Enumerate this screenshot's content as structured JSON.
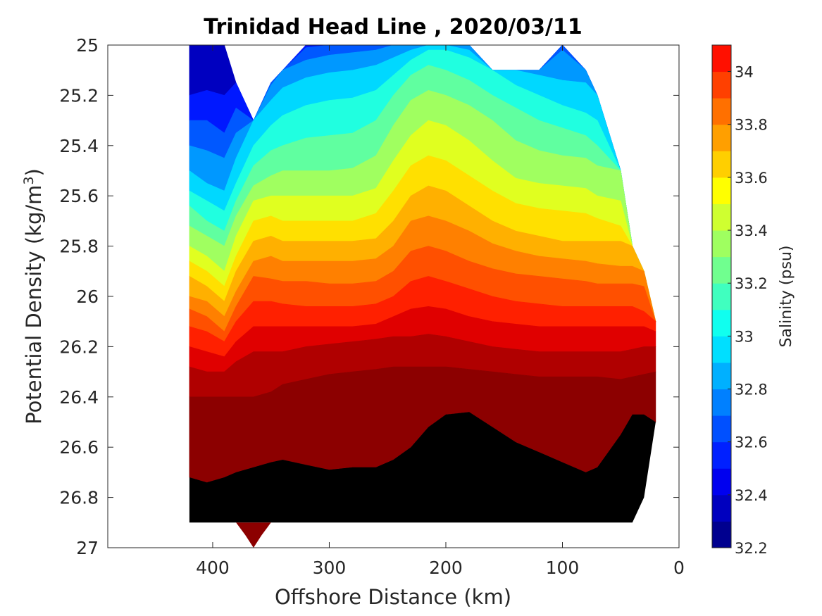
{
  "chart_data": {
    "type": "contour",
    "title": "Trinidad Head Line , 2020/03/11",
    "xlabel": "Offshore Distance (km)",
    "ylabel_main": "Potential Density (kg/m",
    "ylabel_sup": "3",
    "ylabel_end": ")",
    "colorbar_label": "Salinity (psu)",
    "xlim": [
      490,
      0
    ],
    "x_reversed": true,
    "ylim": [
      25,
      27
    ],
    "y_reversed": true,
    "x_ticks": [
      400,
      300,
      200,
      100,
      0
    ],
    "x_tick_labels": [
      "400",
      "300",
      "200",
      "100",
      "0"
    ],
    "y_ticks": [
      25,
      25.2,
      25.4,
      25.6,
      25.8,
      26,
      26.2,
      26.4,
      26.6,
      26.8,
      27
    ],
    "y_tick_labels": [
      "25",
      "25.2",
      "25.4",
      "25.6",
      "25.8",
      "26",
      "26.2",
      "26.4",
      "26.6",
      "26.8",
      "27"
    ],
    "colorbar_range": [
      32.2,
      34.1
    ],
    "colorbar_ticks": [
      32.2,
      32.4,
      32.6,
      32.8,
      33,
      33.2,
      33.4,
      33.6,
      33.8,
      34
    ],
    "colorbar_tick_labels": [
      "32.2",
      "32.4",
      "32.6",
      "32.8",
      "33",
      "33.2",
      "33.4",
      "33.6",
      "33.8",
      "34"
    ],
    "levels": [
      32.2,
      32.3,
      32.4,
      32.5,
      32.6,
      32.7,
      32.8,
      32.9,
      33.0,
      33.1,
      33.2,
      33.3,
      33.4,
      33.5,
      33.6,
      33.7,
      33.8,
      33.9,
      34.0,
      34.1
    ],
    "level_colors": [
      "#00008f",
      "#0000bf",
      "#0000ef",
      "#0020ff",
      "#0050ff",
      "#0080ff",
      "#00b0ff",
      "#00dfff",
      "#10ffef",
      "#40ffbf",
      "#70ff8f",
      "#9fff60",
      "#cfff30",
      "#ffff00",
      "#ffcf00",
      "#ff9f00",
      "#ff7000",
      "#ff4000",
      "#ff1000",
      "#df0000"
    ],
    "band_colors": [
      "#0000c0",
      "#0018ff",
      "#0058ff",
      "#0098ff",
      "#00d8ff",
      "#20ffe0",
      "#60ffa0",
      "#a0ff60",
      "#e0ff20",
      "#ffe000",
      "#ffb000",
      "#ff8000",
      "#ff5000",
      "#ff2000",
      "#e00000",
      "#b00000",
      "#8c0000"
    ],
    "station_x": [
      420,
      405,
      390,
      380,
      365,
      350,
      340,
      320,
      300,
      280,
      260,
      245,
      230,
      215,
      200,
      180,
      160,
      140,
      120,
      100,
      80,
      70,
      50,
      40,
      30,
      20
    ],
    "data_top": [
      25,
      25,
      25,
      25.15,
      25.3,
      25.15,
      25.1,
      25,
      25,
      25,
      25,
      25,
      25,
      25,
      25,
      25,
      25.1,
      25.1,
      25.1,
      25,
      25.1,
      25.2,
      25.5,
      25.8,
      25.9,
      26.1
    ],
    "data_bottom": [
      26.9,
      26.9,
      26.9,
      26.9,
      26.9,
      26.9,
      26.9,
      26.9,
      26.9,
      26.9,
      26.9,
      26.9,
      26.9,
      26.9,
      26.9,
      26.9,
      26.9,
      26.9,
      26.9,
      26.9,
      26.9,
      26.9,
      26.9,
      26.9,
      26.8,
      26.5
    ],
    "contours": [
      {
        "level": 32.4,
        "depth": [
          25.2,
          25.18,
          25.2,
          25.1,
          25.05,
          25.02,
          25.0,
          25.0,
          25.0,
          25.0,
          25.0,
          25.0,
          25.0,
          25.0,
          25.0,
          25.0,
          25.0,
          25.0,
          25.0,
          25.0,
          25.0,
          25.0,
          25.0,
          25.0,
          25.0,
          25.0
        ]
      },
      {
        "level": 32.5,
        "depth": [
          25.3,
          25.3,
          25.35,
          25.25,
          25.12,
          25.08,
          25.03,
          25.01,
          25.0,
          25.0,
          25.0,
          25.0,
          25.0,
          25.0,
          25.0,
          25.0,
          25.0,
          25.0,
          25.0,
          25.0,
          25.0,
          25.0,
          25.0,
          25.0,
          25.0,
          25.0
        ]
      },
      {
        "level": 32.6,
        "depth": [
          25.4,
          25.42,
          25.45,
          25.35,
          25.2,
          25.16,
          25.1,
          25.06,
          25.04,
          25.03,
          25.02,
          25.0,
          25.0,
          25.0,
          25.0,
          25.0,
          25.0,
          25.0,
          25.0,
          25.02,
          25.04,
          25.05,
          25.1,
          25.1,
          25.1,
          25.1
        ]
      },
      {
        "level": 32.7,
        "depth": [
          25.5,
          25.55,
          25.58,
          25.45,
          25.3,
          25.22,
          25.17,
          25.13,
          25.11,
          25.1,
          25.08,
          25.05,
          25.02,
          25.0,
          25.0,
          25.02,
          25.06,
          25.1,
          25.12,
          25.14,
          25.15,
          25.18,
          25.2,
          25.2,
          25.2,
          25.2
        ]
      },
      {
        "level": 32.8,
        "depth": [
          25.58,
          25.62,
          25.66,
          25.55,
          25.4,
          25.32,
          25.28,
          25.24,
          25.22,
          25.21,
          25.18,
          25.12,
          25.06,
          25.02,
          25.02,
          25.05,
          25.1,
          25.16,
          25.2,
          25.24,
          25.27,
          25.3,
          25.3,
          25.3,
          25.3,
          25.3
        ]
      },
      {
        "level": 32.9,
        "depth": [
          25.64,
          25.7,
          25.74,
          25.62,
          25.48,
          25.42,
          25.4,
          25.37,
          25.36,
          25.35,
          25.3,
          25.2,
          25.12,
          25.08,
          25.1,
          25.14,
          25.2,
          25.25,
          25.3,
          25.33,
          25.36,
          25.4,
          25.45,
          25.45,
          25.45,
          25.45
        ]
      },
      {
        "level": 33.0,
        "depth": [
          25.72,
          25.76,
          25.8,
          25.68,
          25.56,
          25.52,
          25.5,
          25.5,
          25.5,
          25.49,
          25.44,
          25.32,
          25.22,
          25.18,
          25.2,
          25.24,
          25.3,
          25.38,
          25.42,
          25.44,
          25.45,
          25.48,
          25.5,
          25.5,
          25.5,
          25.5
        ]
      },
      {
        "level": 33.1,
        "depth": [
          25.8,
          25.84,
          25.9,
          25.76,
          25.62,
          25.6,
          25.6,
          25.6,
          25.6,
          25.6,
          25.57,
          25.46,
          25.36,
          25.3,
          25.32,
          25.38,
          25.46,
          25.53,
          25.55,
          25.56,
          25.57,
          25.6,
          25.62,
          25.62,
          25.62,
          25.62
        ]
      },
      {
        "level": 33.2,
        "depth": [
          25.86,
          25.9,
          25.96,
          25.84,
          25.7,
          25.68,
          25.7,
          25.7,
          25.7,
          25.7,
          25.67,
          25.58,
          25.48,
          25.44,
          25.46,
          25.52,
          25.58,
          25.63,
          25.65,
          25.66,
          25.67,
          25.69,
          25.72,
          25.72,
          25.72,
          25.72
        ]
      },
      {
        "level": 33.3,
        "depth": [
          25.92,
          25.96,
          26.02,
          25.9,
          25.78,
          25.76,
          25.78,
          25.78,
          25.78,
          25.78,
          25.77,
          25.7,
          25.6,
          25.56,
          25.58,
          25.64,
          25.7,
          25.74,
          25.76,
          25.78,
          25.78,
          25.78,
          25.78,
          25.78,
          25.78,
          25.78
        ]
      },
      {
        "level": 33.4,
        "depth": [
          26.0,
          26.02,
          26.08,
          25.98,
          25.86,
          25.84,
          25.86,
          25.86,
          25.86,
          25.86,
          25.85,
          25.8,
          25.7,
          25.68,
          25.7,
          25.74,
          25.79,
          25.82,
          25.84,
          25.85,
          25.86,
          25.87,
          25.88,
          25.88,
          25.88,
          25.88
        ]
      },
      {
        "level": 33.5,
        "depth": [
          26.05,
          26.08,
          26.14,
          26.04,
          25.92,
          25.93,
          25.94,
          25.94,
          25.95,
          25.95,
          25.94,
          25.9,
          25.82,
          25.8,
          25.82,
          25.86,
          25.89,
          25.91,
          25.92,
          25.93,
          25.94,
          25.95,
          25.95,
          25.95,
          25.96,
          25.98
        ]
      },
      {
        "level": 33.6,
        "depth": [
          26.12,
          26.14,
          26.18,
          26.1,
          26.02,
          26.02,
          26.03,
          26.04,
          26.04,
          26.04,
          26.03,
          26.0,
          25.94,
          25.92,
          25.94,
          25.97,
          26.0,
          26.02,
          26.03,
          26.04,
          26.04,
          26.04,
          26.04,
          26.04,
          26.06,
          26.08
        ]
      },
      {
        "level": 33.7,
        "depth": [
          26.2,
          26.22,
          26.24,
          26.18,
          26.12,
          26.12,
          26.12,
          26.12,
          26.12,
          26.12,
          26.11,
          26.08,
          26.05,
          26.04,
          26.05,
          26.08,
          26.1,
          26.11,
          26.12,
          26.12,
          26.12,
          26.12,
          26.12,
          26.12,
          26.12,
          26.14
        ]
      },
      {
        "level": 33.8,
        "depth": [
          26.28,
          26.3,
          26.3,
          26.26,
          26.22,
          26.22,
          26.22,
          26.2,
          26.19,
          26.18,
          26.17,
          26.16,
          26.16,
          26.15,
          26.16,
          26.18,
          26.2,
          26.21,
          26.22,
          26.22,
          26.22,
          26.22,
          26.22,
          26.21,
          26.2,
          26.2
        ]
      },
      {
        "level": 33.9,
        "depth": [
          26.4,
          26.4,
          26.4,
          26.4,
          26.4,
          26.38,
          26.35,
          26.33,
          26.31,
          26.3,
          26.29,
          26.28,
          26.28,
          26.28,
          26.28,
          26.29,
          26.3,
          26.31,
          26.32,
          26.32,
          26.32,
          26.32,
          26.33,
          26.32,
          26.31,
          26.3
        ]
      },
      {
        "level": 34.0,
        "depth": [
          26.72,
          26.74,
          26.72,
          26.7,
          26.68,
          26.66,
          26.65,
          26.67,
          26.69,
          26.68,
          26.68,
          26.65,
          26.6,
          26.52,
          26.47,
          26.46,
          26.52,
          26.58,
          26.62,
          26.66,
          26.7,
          26.68,
          26.55,
          26.47,
          26.47,
          26.5
        ]
      }
    ]
  }
}
